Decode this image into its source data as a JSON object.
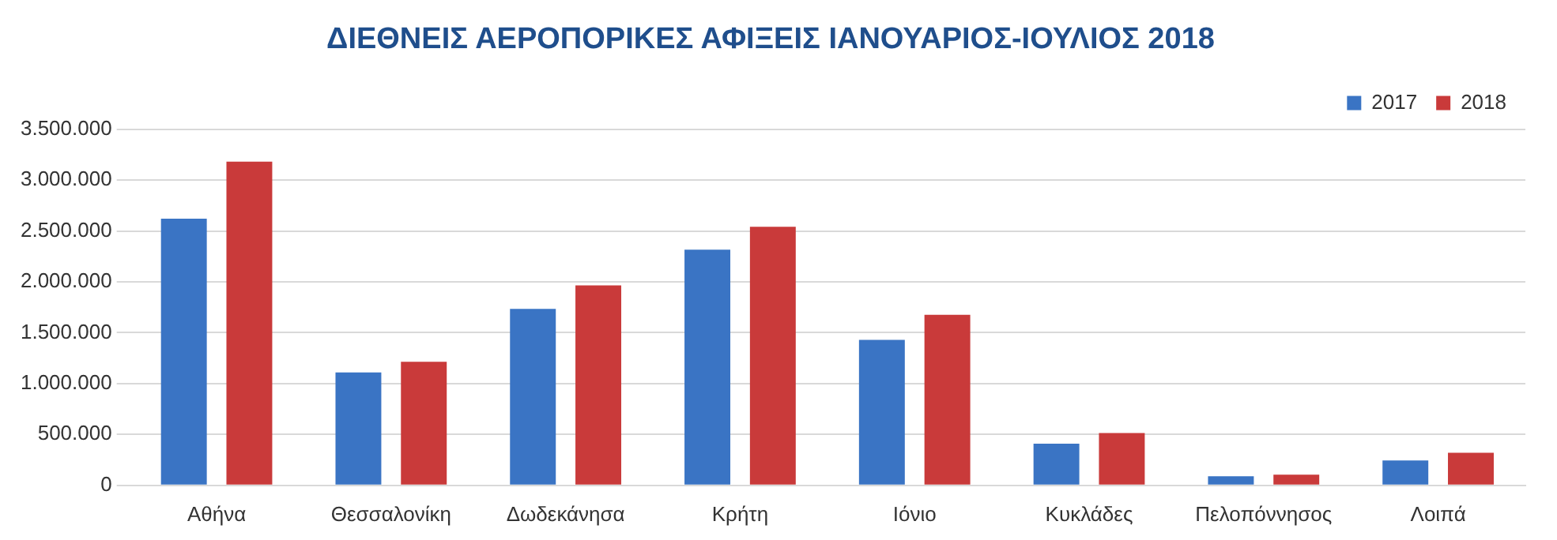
{
  "chart_data": {
    "type": "bar",
    "title": "ΔΙΕΘΝΕΙΣ ΑΕΡΟΠΟΡΙΚΕΣ ΑΦΙΞΕΙΣ ΙΑΝΟΥΑΡΙΟΣ-ΙΟΥΛΙΟΣ 2018",
    "categories": [
      "Αθήνα",
      "Θεσσαλονίκη",
      "Δωδεκάνησα",
      "Κρήτη",
      "Ιόνιο",
      "Κυκλάδες",
      "Πελοπόννησος",
      "Λοιπά"
    ],
    "series": [
      {
        "name": "2017",
        "color": "#3a74c4",
        "values": [
          2620000,
          1110000,
          1735000,
          2315000,
          1430000,
          410000,
          90000,
          245000
        ]
      },
      {
        "name": "2018",
        "color": "#c93a3a",
        "values": [
          3180000,
          1215000,
          1965000,
          2540000,
          1675000,
          515000,
          105000,
          320000
        ]
      }
    ],
    "ylim": [
      0,
      3500000
    ],
    "yticks": [
      {
        "value": 0,
        "label": "0"
      },
      {
        "value": 500000,
        "label": "500.000"
      },
      {
        "value": 1000000,
        "label": "1.000.000"
      },
      {
        "value": 1500000,
        "label": "1.500.000"
      },
      {
        "value": 2000000,
        "label": "2.000.000"
      },
      {
        "value": 2500000,
        "label": "2.500.000"
      },
      {
        "value": 3000000,
        "label": "3.000.000"
      },
      {
        "value": 3500000,
        "label": "3.500.000"
      }
    ],
    "grid": "y",
    "legend": "top right"
  }
}
